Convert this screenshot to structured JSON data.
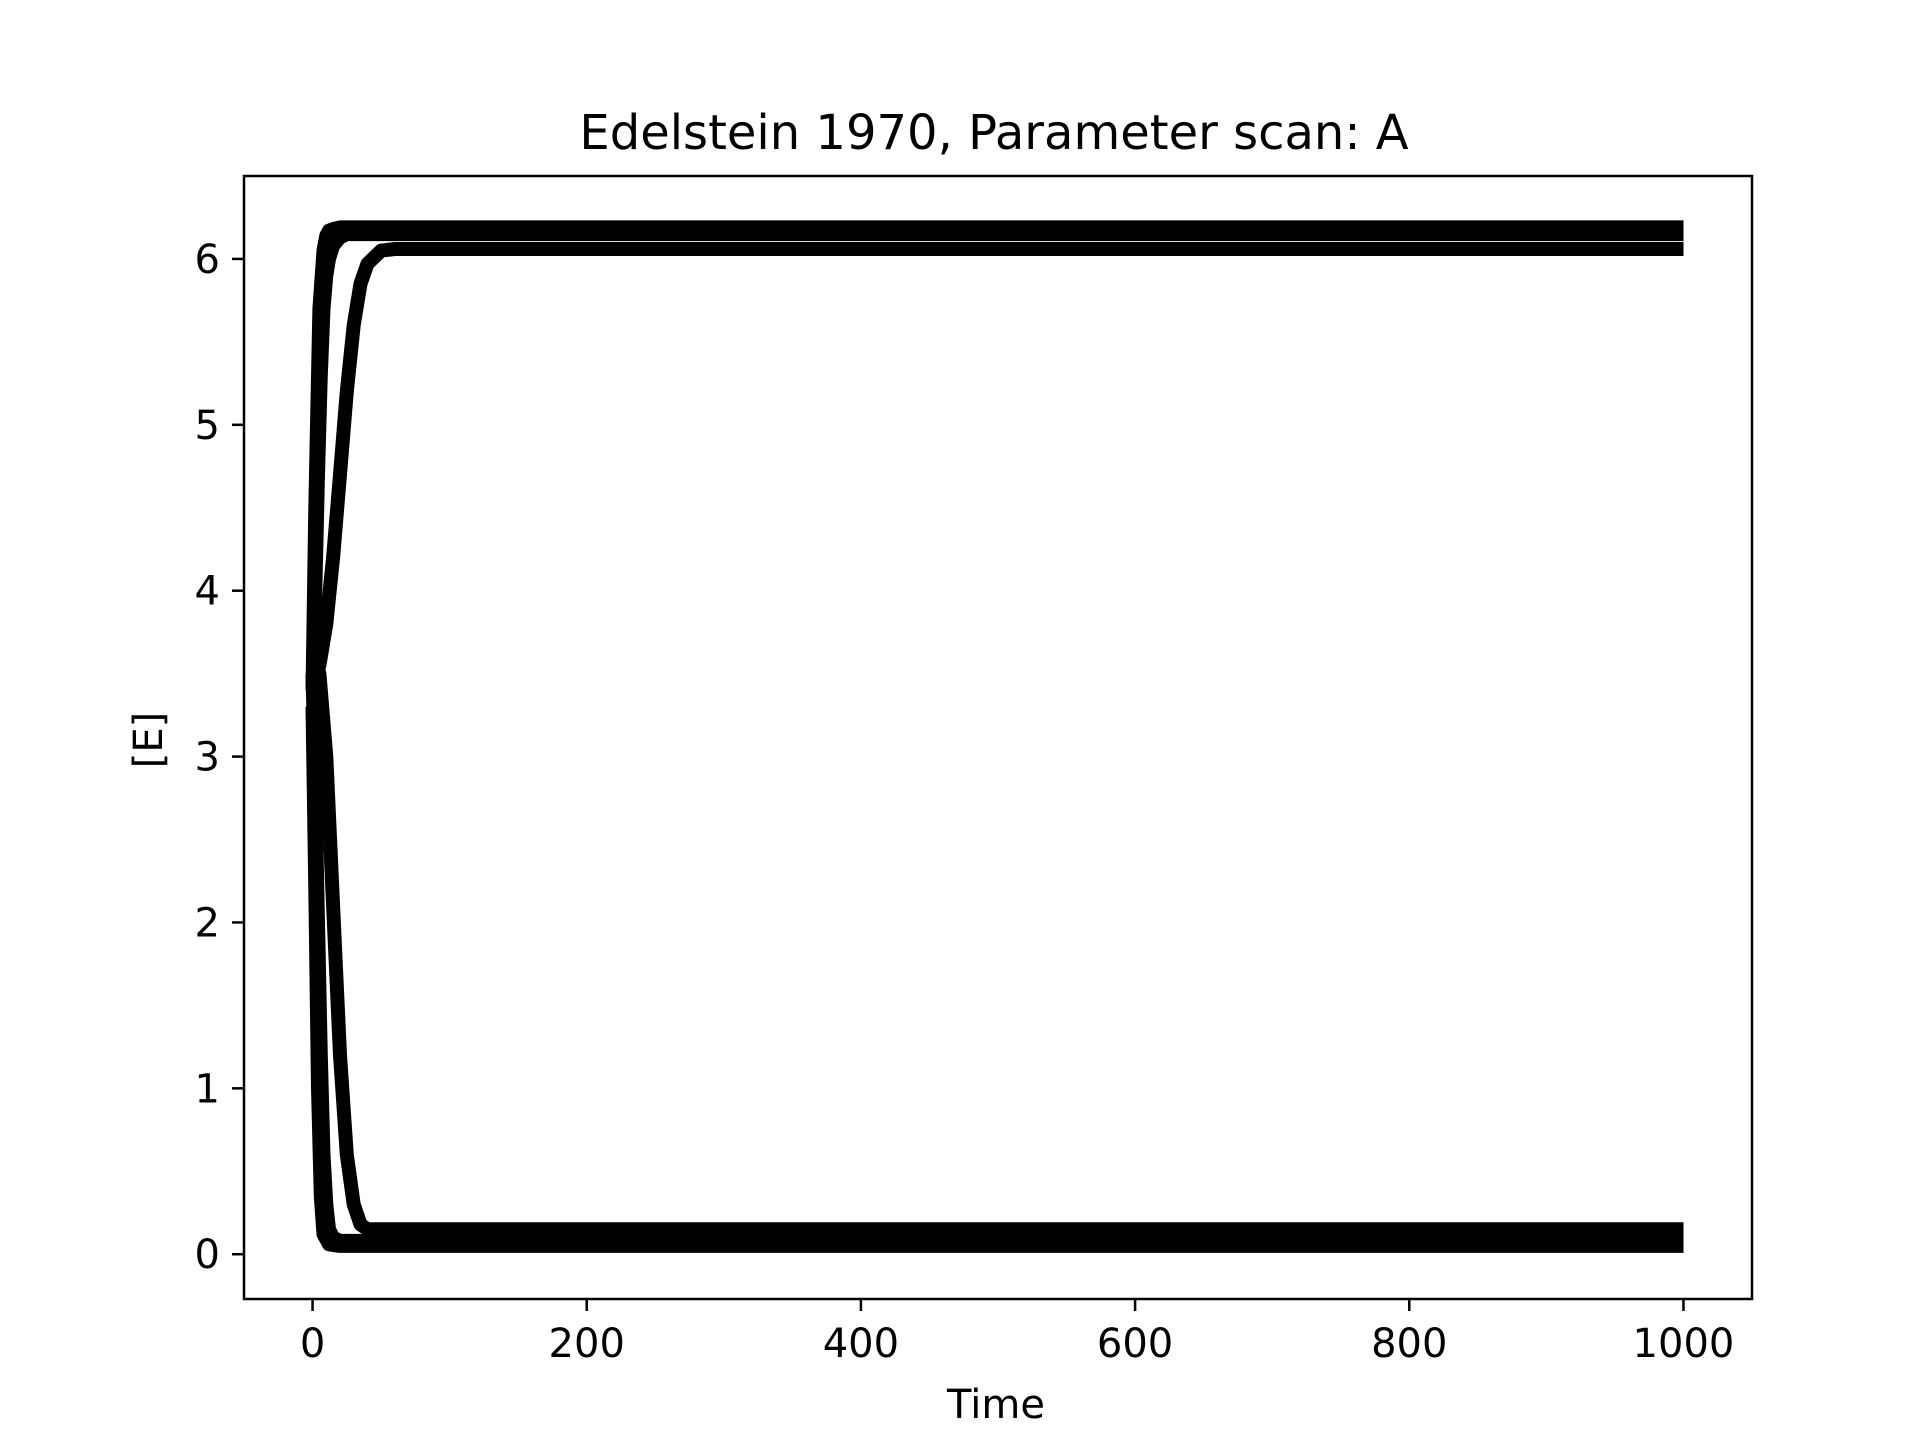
{
  "chart_data": {
    "type": "line",
    "title": "Edelstein 1970, Parameter scan: A",
    "xlabel": "Time",
    "ylabel": "[E]",
    "xlim": [
      -50,
      1050
    ],
    "ylim": [
      -0.27,
      6.5
    ],
    "xticks": [
      0,
      200,
      400,
      600,
      800,
      1000
    ],
    "yticks": [
      0,
      1,
      2,
      3,
      4,
      5,
      6
    ],
    "grid": false,
    "legend": "none",
    "line_color": "#000000",
    "series": [
      {
        "x": [
          0,
          2,
          5,
          8,
          10,
          12,
          15,
          20,
          25,
          30,
          50,
          100,
          1000
        ],
        "y": [
          3.4,
          4.5,
          5.7,
          6.05,
          6.14,
          6.17,
          6.18,
          6.19,
          6.19,
          6.19,
          6.19,
          6.19,
          6.19
        ]
      },
      {
        "x": [
          0,
          2,
          4,
          6,
          8,
          10,
          12,
          15,
          20,
          25,
          30,
          50,
          100,
          1000
        ],
        "y": [
          3.4,
          4.0,
          4.7,
          5.3,
          5.7,
          5.9,
          6.0,
          6.08,
          6.13,
          6.15,
          6.15,
          6.15,
          6.15,
          6.15
        ]
      },
      {
        "x": [
          0,
          5,
          10,
          15,
          20,
          25,
          30,
          35,
          40,
          50,
          60,
          70,
          100,
          1000
        ],
        "y": [
          3.4,
          3.55,
          3.8,
          4.2,
          4.7,
          5.2,
          5.6,
          5.85,
          5.97,
          6.05,
          6.06,
          6.06,
          6.06,
          6.06
        ]
      },
      {
        "x": [
          0,
          2,
          4,
          6,
          8,
          12,
          20,
          1000
        ],
        "y": [
          3.3,
          2.2,
          1.0,
          0.35,
          0.12,
          0.06,
          0.05,
          0.05
        ]
      },
      {
        "x": [
          0,
          2,
          4,
          6,
          8,
          10,
          12,
          15,
          20,
          1000
        ],
        "y": [
          3.5,
          2.8,
          2.0,
          1.2,
          0.6,
          0.3,
          0.15,
          0.1,
          0.08,
          0.08
        ]
      },
      {
        "x": [
          0,
          5,
          10,
          15,
          20,
          25,
          30,
          35,
          40,
          50,
          1000
        ],
        "y": [
          3.6,
          3.5,
          3.0,
          2.1,
          1.2,
          0.6,
          0.3,
          0.18,
          0.15,
          0.15,
          0.15
        ]
      }
    ]
  }
}
